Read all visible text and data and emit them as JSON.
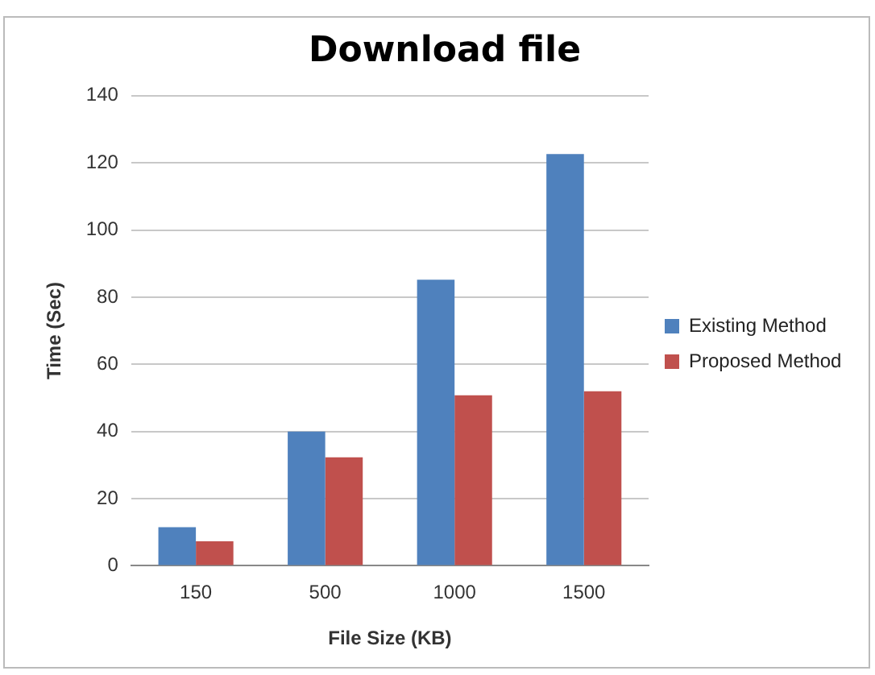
{
  "chart_data": {
    "type": "bar",
    "title": "Download file",
    "xlabel": "File Size (KB)",
    "ylabel": "Time (Sec)",
    "categories": [
      "150",
      "500",
      "1000",
      "1500"
    ],
    "series": [
      {
        "name": "Existing Method",
        "color": "#4f81bd",
        "values": [
          11.5,
          40,
          85.2,
          122.6
        ]
      },
      {
        "name": "Proposed Method",
        "color": "#c0504d",
        "values": [
          7.3,
          32.3,
          50.8,
          52
        ]
      }
    ],
    "ylim": [
      0,
      140
    ],
    "yticks": [
      0,
      20,
      40,
      60,
      80,
      100,
      120,
      140
    ],
    "grid": "y",
    "legend": "right"
  }
}
